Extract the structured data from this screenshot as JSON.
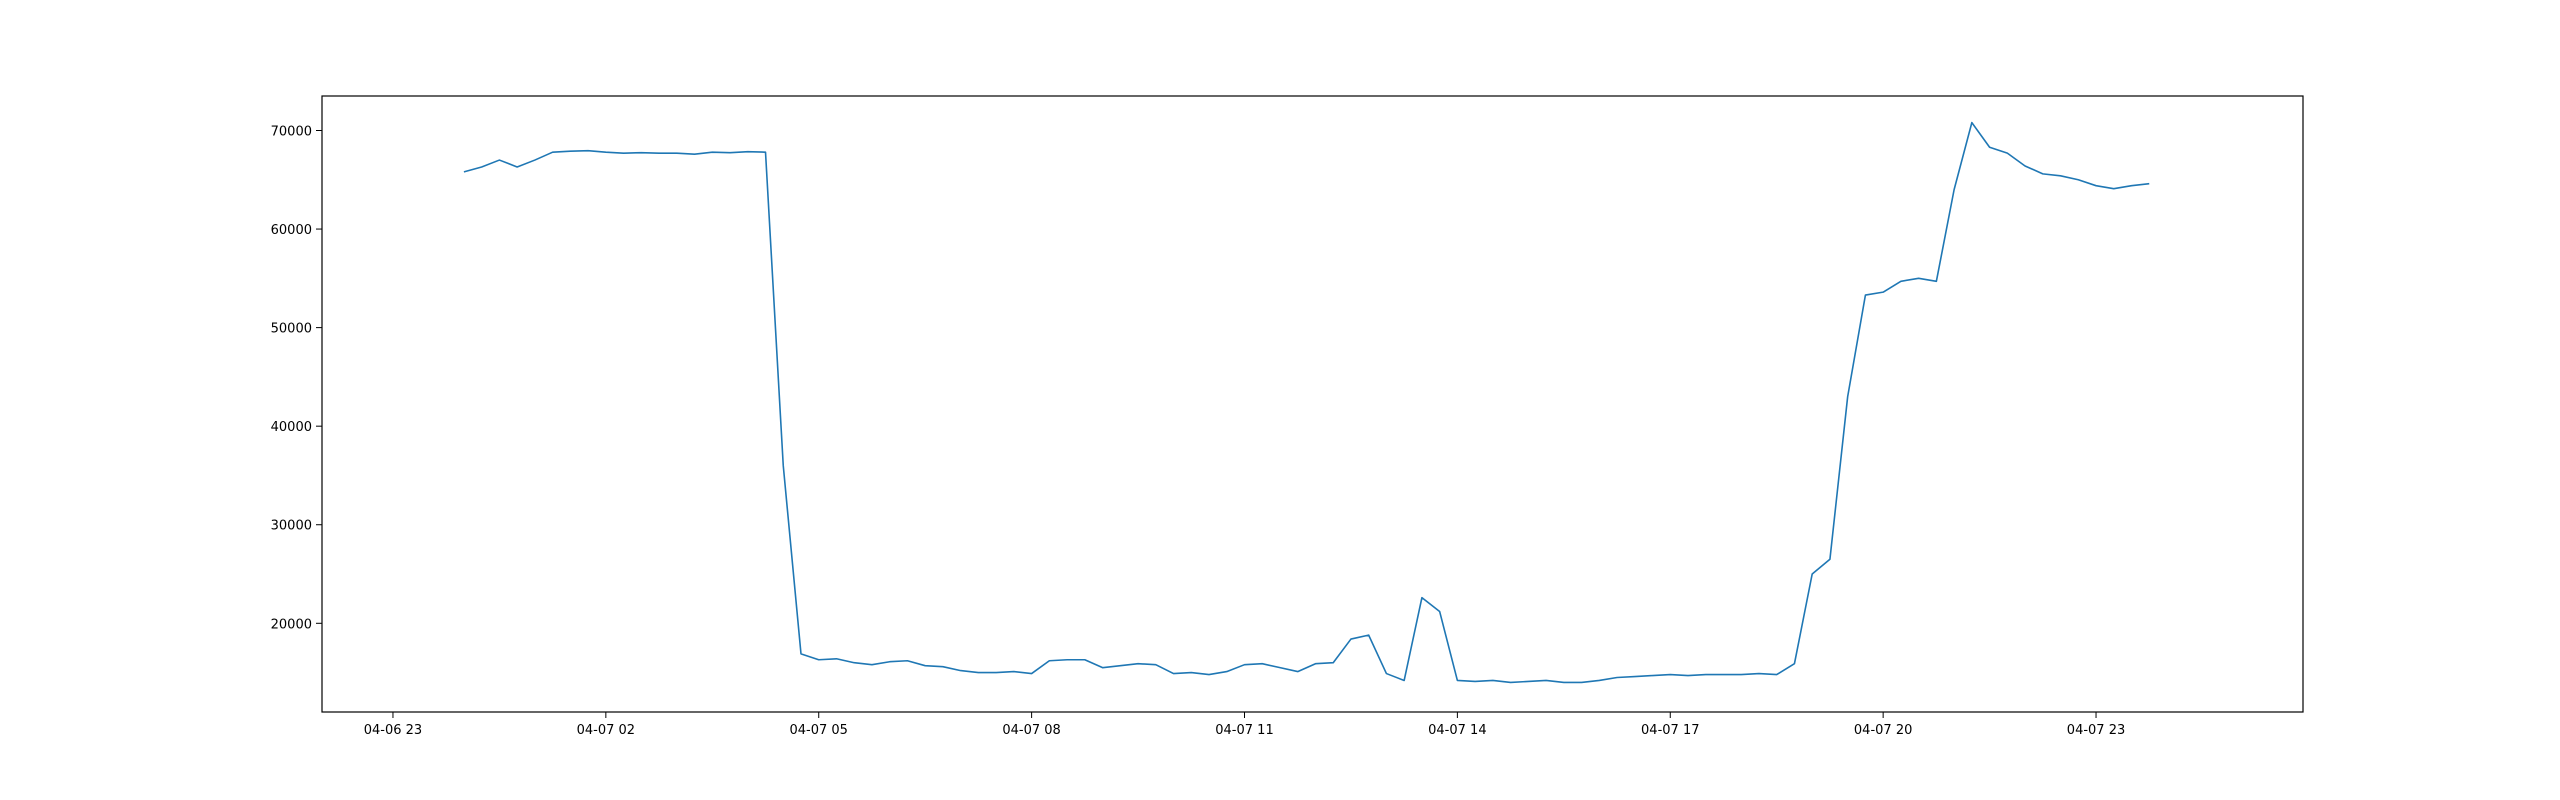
{
  "chart_data": {
    "type": "line",
    "title": "",
    "xlabel": "",
    "ylabel": "",
    "line_color": "#1f77b4",
    "grid": false,
    "legend": "none",
    "xlim": [
      "2020-04-06 22:00",
      "2020-04-08 01:55"
    ],
    "ylim": [
      11000,
      73500
    ],
    "x_ticks": [
      {
        "x": "2020-04-06 23:00",
        "label": "04-06 23"
      },
      {
        "x": "2020-04-07 02:00",
        "label": "04-07 02"
      },
      {
        "x": "2020-04-07 05:00",
        "label": "04-07 05"
      },
      {
        "x": "2020-04-07 08:00",
        "label": "04-07 08"
      },
      {
        "x": "2020-04-07 11:00",
        "label": "04-07 11"
      },
      {
        "x": "2020-04-07 14:00",
        "label": "04-07 14"
      },
      {
        "x": "2020-04-07 17:00",
        "label": "04-07 17"
      },
      {
        "x": "2020-04-07 20:00",
        "label": "04-07 20"
      },
      {
        "x": "2020-04-07 23:00",
        "label": "04-07 23"
      }
    ],
    "y_ticks": [
      {
        "y": 20000,
        "label": "20000"
      },
      {
        "y": 30000,
        "label": "30000"
      },
      {
        "y": 40000,
        "label": "40000"
      },
      {
        "y": 50000,
        "label": "50000"
      },
      {
        "y": 60000,
        "label": "60000"
      },
      {
        "y": 70000,
        "label": "70000"
      }
    ],
    "series": [
      {
        "x": [
          "2020-04-07 00:00",
          "2020-04-07 00:15",
          "2020-04-07 00:30",
          "2020-04-07 00:45",
          "2020-04-07 01:00",
          "2020-04-07 01:15",
          "2020-04-07 01:30",
          "2020-04-07 01:45",
          "2020-04-07 02:00",
          "2020-04-07 02:15",
          "2020-04-07 02:30",
          "2020-04-07 02:45",
          "2020-04-07 03:00",
          "2020-04-07 03:15",
          "2020-04-07 03:30",
          "2020-04-07 03:45",
          "2020-04-07 04:00",
          "2020-04-07 04:15",
          "2020-04-07 04:30",
          "2020-04-07 04:45",
          "2020-04-07 05:00",
          "2020-04-07 05:15",
          "2020-04-07 05:30",
          "2020-04-07 05:45",
          "2020-04-07 06:00",
          "2020-04-07 06:15",
          "2020-04-07 06:30",
          "2020-04-07 06:45",
          "2020-04-07 07:00",
          "2020-04-07 07:15",
          "2020-04-07 07:30",
          "2020-04-07 07:45",
          "2020-04-07 08:00",
          "2020-04-07 08:15",
          "2020-04-07 08:30",
          "2020-04-07 08:45",
          "2020-04-07 09:00",
          "2020-04-07 09:15",
          "2020-04-07 09:30",
          "2020-04-07 09:45",
          "2020-04-07 10:00",
          "2020-04-07 10:15",
          "2020-04-07 10:30",
          "2020-04-07 10:45",
          "2020-04-07 11:00",
          "2020-04-07 11:15",
          "2020-04-07 11:30",
          "2020-04-07 11:45",
          "2020-04-07 12:00",
          "2020-04-07 12:15",
          "2020-04-07 12:30",
          "2020-04-07 12:45",
          "2020-04-07 13:00",
          "2020-04-07 13:15",
          "2020-04-07 13:30",
          "2020-04-07 13:45",
          "2020-04-07 14:00",
          "2020-04-07 14:15",
          "2020-04-07 14:30",
          "2020-04-07 14:45",
          "2020-04-07 15:00",
          "2020-04-07 15:15",
          "2020-04-07 15:30",
          "2020-04-07 15:45",
          "2020-04-07 16:00",
          "2020-04-07 16:15",
          "2020-04-07 16:30",
          "2020-04-07 16:45",
          "2020-04-07 17:00",
          "2020-04-07 17:15",
          "2020-04-07 17:30",
          "2020-04-07 17:45",
          "2020-04-07 18:00",
          "2020-04-07 18:15",
          "2020-04-07 18:30",
          "2020-04-07 18:45",
          "2020-04-07 19:00",
          "2020-04-07 19:15",
          "2020-04-07 19:30",
          "2020-04-07 19:45",
          "2020-04-07 20:00",
          "2020-04-07 20:15",
          "2020-04-07 20:30",
          "2020-04-07 20:45",
          "2020-04-07 21:00",
          "2020-04-07 21:15",
          "2020-04-07 21:30",
          "2020-04-07 21:45",
          "2020-04-07 22:00",
          "2020-04-07 22:15",
          "2020-04-07 22:30",
          "2020-04-07 22:45",
          "2020-04-07 23:00",
          "2020-04-07 23:15",
          "2020-04-07 23:30",
          "2020-04-07 23:45"
        ],
        "y": [
          65800,
          66300,
          67000,
          66300,
          67000,
          67800,
          67900,
          67950,
          67800,
          67700,
          67750,
          67700,
          67700,
          67600,
          67800,
          67750,
          67850,
          67800,
          36000,
          16900,
          16300,
          16400,
          16000,
          15800,
          16100,
          16200,
          15700,
          15600,
          15200,
          15000,
          15000,
          15100,
          14900,
          16200,
          16300,
          16300,
          15500,
          15700,
          15900,
          15800,
          14900,
          15000,
          14800,
          15100,
          15800,
          15900,
          15500,
          15100,
          15900,
          16000,
          18400,
          18800,
          14900,
          14200,
          22600,
          21200,
          14200,
          14100,
          14200,
          14000,
          14100,
          14200,
          14000,
          14000,
          14200,
          14500,
          14600,
          14700,
          14800,
          14700,
          14800,
          14800,
          14800,
          14900,
          14800,
          15900,
          25000,
          26500,
          43000,
          53300,
          53600,
          54700,
          55000,
          54700,
          64000,
          70800,
          68300,
          67700,
          66400,
          65600,
          65400,
          65000,
          64400,
          64100,
          64400,
          64600
        ]
      }
    ]
  }
}
